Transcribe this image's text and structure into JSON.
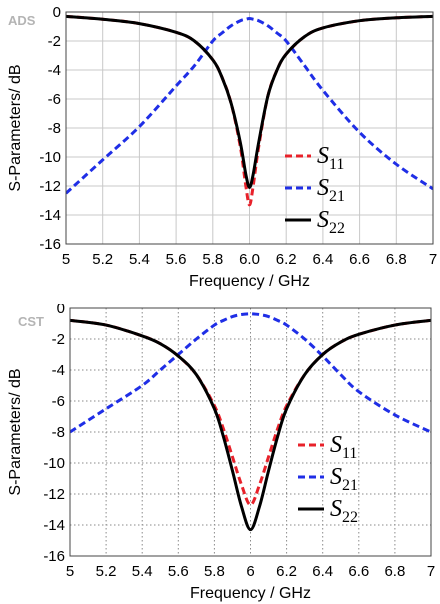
{
  "chart_data": [
    {
      "type": "line",
      "tool_label": "ADS",
      "xlabel": "Frequency / GHz",
      "ylabel": "S-Parameters/ dB",
      "xlim": [
        5,
        7
      ],
      "ylim": [
        -16,
        0
      ],
      "xticks": [
        "5",
        "5.2",
        "5.4",
        "5.6",
        "5.8",
        "6.0",
        "6.2",
        "6.4",
        "6.6",
        "6.8",
        "7"
      ],
      "yticks": [
        "0",
        "-2",
        "-4",
        "-6",
        "-8",
        "-10",
        "-12",
        "-14",
        "-16"
      ],
      "grid": "solid",
      "legend_position": "lower-right",
      "x": [
        5.0,
        5.2,
        5.4,
        5.6,
        5.7,
        5.8,
        5.85,
        5.9,
        5.95,
        5.98,
        6.0,
        6.02,
        6.05,
        6.1,
        6.15,
        6.2,
        6.3,
        6.4,
        6.6,
        6.8,
        7.0
      ],
      "series": [
        {
          "name": "S11",
          "sub": "11",
          "color": "#e8212a",
          "dash": "dashed",
          "values": [
            -0.3,
            -0.5,
            -0.8,
            -1.4,
            -2.0,
            -3.3,
            -4.5,
            -6.3,
            -9.3,
            -12.0,
            -13.3,
            -12.0,
            -9.3,
            -5.8,
            -4.0,
            -2.9,
            -1.7,
            -1.1,
            -0.6,
            -0.4,
            -0.3
          ]
        },
        {
          "name": "S21",
          "sub": "21",
          "color": "#1f2ee6",
          "dash": "dashed",
          "values": [
            -12.5,
            -10.2,
            -7.9,
            -5.1,
            -3.7,
            -2.0,
            -1.45,
            -0.95,
            -0.6,
            -0.5,
            -0.45,
            -0.5,
            -0.6,
            -0.95,
            -1.45,
            -2.0,
            -3.7,
            -5.4,
            -8.3,
            -10.5,
            -12.2
          ]
        },
        {
          "name": "S22",
          "sub": "22",
          "color": "#000000",
          "dash": "solid",
          "values": [
            -0.3,
            -0.5,
            -0.8,
            -1.4,
            -2.0,
            -3.3,
            -4.5,
            -6.3,
            -9.0,
            -11.2,
            -12.1,
            -11.2,
            -9.0,
            -5.8,
            -4.0,
            -2.9,
            -1.7,
            -1.1,
            -0.6,
            -0.4,
            -0.3
          ]
        }
      ]
    },
    {
      "type": "line",
      "tool_label": "CST",
      "xlabel": "Frequency / GHz",
      "ylabel": "S-Parameters/ dB",
      "xlim": [
        5,
        7
      ],
      "ylim": [
        -16,
        0
      ],
      "xticks": [
        "5",
        "5.2",
        "5.4",
        "5.6",
        "5.8",
        "6",
        "6.2",
        "6.4",
        "6.6",
        "6.8",
        "7"
      ],
      "yticks": [
        "0",
        "-2",
        "-4",
        "-6",
        "-8",
        "-10",
        "-12",
        "-14",
        "-16"
      ],
      "grid": "dotted",
      "legend_position": "lower-right",
      "x": [
        5.0,
        5.2,
        5.4,
        5.5,
        5.6,
        5.7,
        5.8,
        5.85,
        5.9,
        5.95,
        6.0,
        6.05,
        6.1,
        6.15,
        6.2,
        6.3,
        6.4,
        6.5,
        6.6,
        6.8,
        7.0
      ],
      "series": [
        {
          "name": "S11",
          "sub": "11",
          "color": "#e8212a",
          "dash": "dashed",
          "values": [
            -0.8,
            -1.1,
            -1.8,
            -2.3,
            -3.1,
            -4.3,
            -6.3,
            -7.8,
            -9.6,
            -11.4,
            -12.7,
            -11.4,
            -9.6,
            -7.8,
            -6.3,
            -4.3,
            -3.0,
            -2.2,
            -1.7,
            -1.1,
            -0.8
          ]
        },
        {
          "name": "S21",
          "sub": "21",
          "color": "#1f2ee6",
          "dash": "dashed",
          "values": [
            -8.0,
            -6.5,
            -5.0,
            -4.0,
            -3.0,
            -2.0,
            -1.1,
            -0.8,
            -0.55,
            -0.42,
            -0.38,
            -0.42,
            -0.55,
            -0.8,
            -1.1,
            -2.0,
            -3.1,
            -4.3,
            -5.4,
            -6.9,
            -8.0
          ]
        },
        {
          "name": "S22",
          "sub": "22",
          "color": "#000000",
          "dash": "solid",
          "values": [
            -0.8,
            -1.1,
            -1.8,
            -2.3,
            -3.1,
            -4.3,
            -6.5,
            -8.3,
            -10.5,
            -12.8,
            -14.3,
            -12.8,
            -10.5,
            -8.3,
            -6.5,
            -4.3,
            -3.0,
            -2.2,
            -1.7,
            -1.1,
            -0.8
          ]
        }
      ]
    }
  ]
}
